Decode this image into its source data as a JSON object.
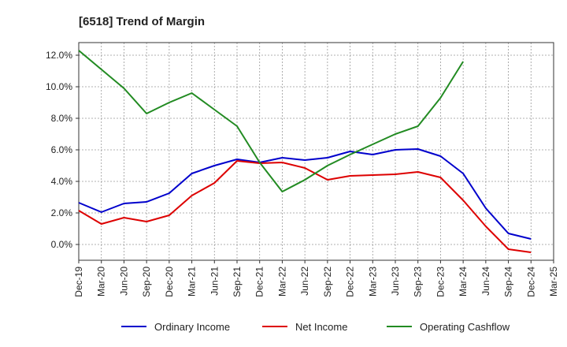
{
  "chart_data": {
    "type": "line",
    "title": "[6518]  Trend of Margin",
    "xlabel": "",
    "ylabel": "",
    "x": [
      "Dec-19",
      "Mar-20",
      "Jun-20",
      "Sep-20",
      "Dec-20",
      "Mar-21",
      "Jun-21",
      "Sep-21",
      "Dec-21",
      "Mar-22",
      "Jun-22",
      "Sep-22",
      "Dec-22",
      "Mar-23",
      "Jun-23",
      "Sep-23",
      "Dec-23",
      "Mar-24",
      "Jun-24",
      "Sep-24",
      "Dec-24",
      "Mar-25"
    ],
    "ylim": [
      -1.0,
      12.8
    ],
    "yticks": [
      0,
      2,
      4,
      6,
      8,
      10,
      12
    ],
    "ytick_labels": [
      "0.0%",
      "2.0%",
      "4.0%",
      "6.0%",
      "8.0%",
      "10.0%",
      "12.0%"
    ],
    "grid": true,
    "legend_position": "bottom",
    "series": [
      {
        "name": "Ordinary Income",
        "color": "#0000cc",
        "values": [
          2.65,
          2.05,
          2.6,
          2.7,
          3.25,
          4.5,
          5.0,
          5.4,
          5.2,
          5.5,
          5.35,
          5.5,
          5.9,
          5.7,
          6.0,
          6.05,
          5.6,
          4.5,
          2.3,
          0.7,
          0.35,
          null
        ]
      },
      {
        "name": "Net Income",
        "color": "#dd0000",
        "values": [
          2.15,
          1.3,
          1.7,
          1.45,
          1.85,
          3.1,
          3.9,
          5.3,
          5.15,
          5.2,
          4.85,
          4.1,
          4.35,
          4.4,
          4.45,
          4.6,
          4.25,
          2.8,
          1.15,
          -0.3,
          -0.5,
          null
        ]
      },
      {
        "name": "Operating Cashflow",
        "color": "#228b22",
        "values": [
          12.3,
          11.1,
          9.9,
          8.3,
          9.0,
          9.6,
          8.55,
          7.5,
          5.2,
          3.35,
          4.1,
          5.0,
          5.7,
          6.35,
          7.0,
          7.5,
          9.3,
          11.6,
          null,
          null,
          null,
          null
        ]
      }
    ]
  }
}
